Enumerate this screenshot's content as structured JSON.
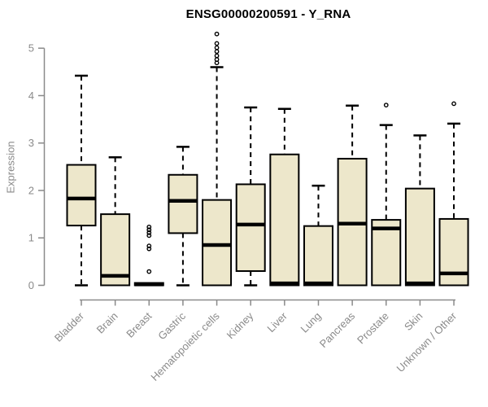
{
  "colors": {
    "background": "#ffffff",
    "box_fill": "#EDE7CB",
    "box_stroke": "#000000",
    "median": "#000000",
    "axis": "#8a8a8a",
    "title": "#000000"
  },
  "chart_data": {
    "type": "boxplot",
    "title": "ENSG00000200591 - Y_RNA",
    "ylabel": "Expression",
    "xlabel": "",
    "ylim": [
      0,
      5.4
    ],
    "yticks": [
      0,
      1,
      2,
      3,
      4,
      5
    ],
    "grid": false,
    "legend": false,
    "categories": [
      "Bladder",
      "Brain",
      "Breast",
      "Gastric",
      "Hematopoietic cells",
      "Kidney",
      "Liver",
      "Lung",
      "Pancreas",
      "Prostate",
      "Skin",
      "Unknown / Other"
    ],
    "series": [
      {
        "name": "Bladder",
        "low": 0.0,
        "q1": 1.26,
        "median": 1.83,
        "q3": 2.54,
        "high": 4.42,
        "outliers": []
      },
      {
        "name": "Brain",
        "low": 0.0,
        "q1": 0.0,
        "median": 0.2,
        "q3": 1.5,
        "high": 2.7,
        "outliers": []
      },
      {
        "name": "Breast",
        "low": 0.0,
        "q1": 0.0,
        "median": 0.02,
        "q3": 0.05,
        "high": 0.07,
        "outliers": [
          1.23,
          1.17,
          1.11,
          1.05,
          0.83,
          0.77,
          0.29
        ]
      },
      {
        "name": "Gastric",
        "low": 0.0,
        "q1": 1.1,
        "median": 1.78,
        "q3": 2.33,
        "high": 2.92,
        "outliers": []
      },
      {
        "name": "Hematopoietic cells",
        "low": 0.0,
        "q1": 0.0,
        "median": 0.85,
        "q3": 1.8,
        "high": 4.6,
        "outliers": [
          5.3,
          5.1,
          5.01,
          4.93,
          4.84,
          4.76,
          4.69
        ]
      },
      {
        "name": "Kidney",
        "low": 0.0,
        "q1": 0.3,
        "median": 1.28,
        "q3": 2.13,
        "high": 3.75,
        "outliers": []
      },
      {
        "name": "Liver",
        "low": 0.0,
        "q1": 0.0,
        "median": 0.04,
        "q3": 2.76,
        "high": 3.72,
        "outliers": []
      },
      {
        "name": "Lung",
        "low": 0.0,
        "q1": 0.0,
        "median": 0.04,
        "q3": 1.25,
        "high": 2.1,
        "outliers": []
      },
      {
        "name": "Pancreas",
        "low": 0.0,
        "q1": 0.0,
        "median": 1.3,
        "q3": 2.67,
        "high": 3.79,
        "outliers": []
      },
      {
        "name": "Prostate",
        "low": 0.0,
        "q1": 0.0,
        "median": 1.2,
        "q3": 1.38,
        "high": 3.38,
        "outliers": [
          3.8
        ]
      },
      {
        "name": "Skin",
        "low": 0.0,
        "q1": 0.0,
        "median": 0.04,
        "q3": 2.04,
        "high": 3.16,
        "outliers": []
      },
      {
        "name": "Unknown / Other",
        "low": 0.0,
        "q1": 0.0,
        "median": 0.25,
        "q3": 1.4,
        "high": 3.41,
        "outliers": [
          3.83
        ]
      }
    ]
  }
}
